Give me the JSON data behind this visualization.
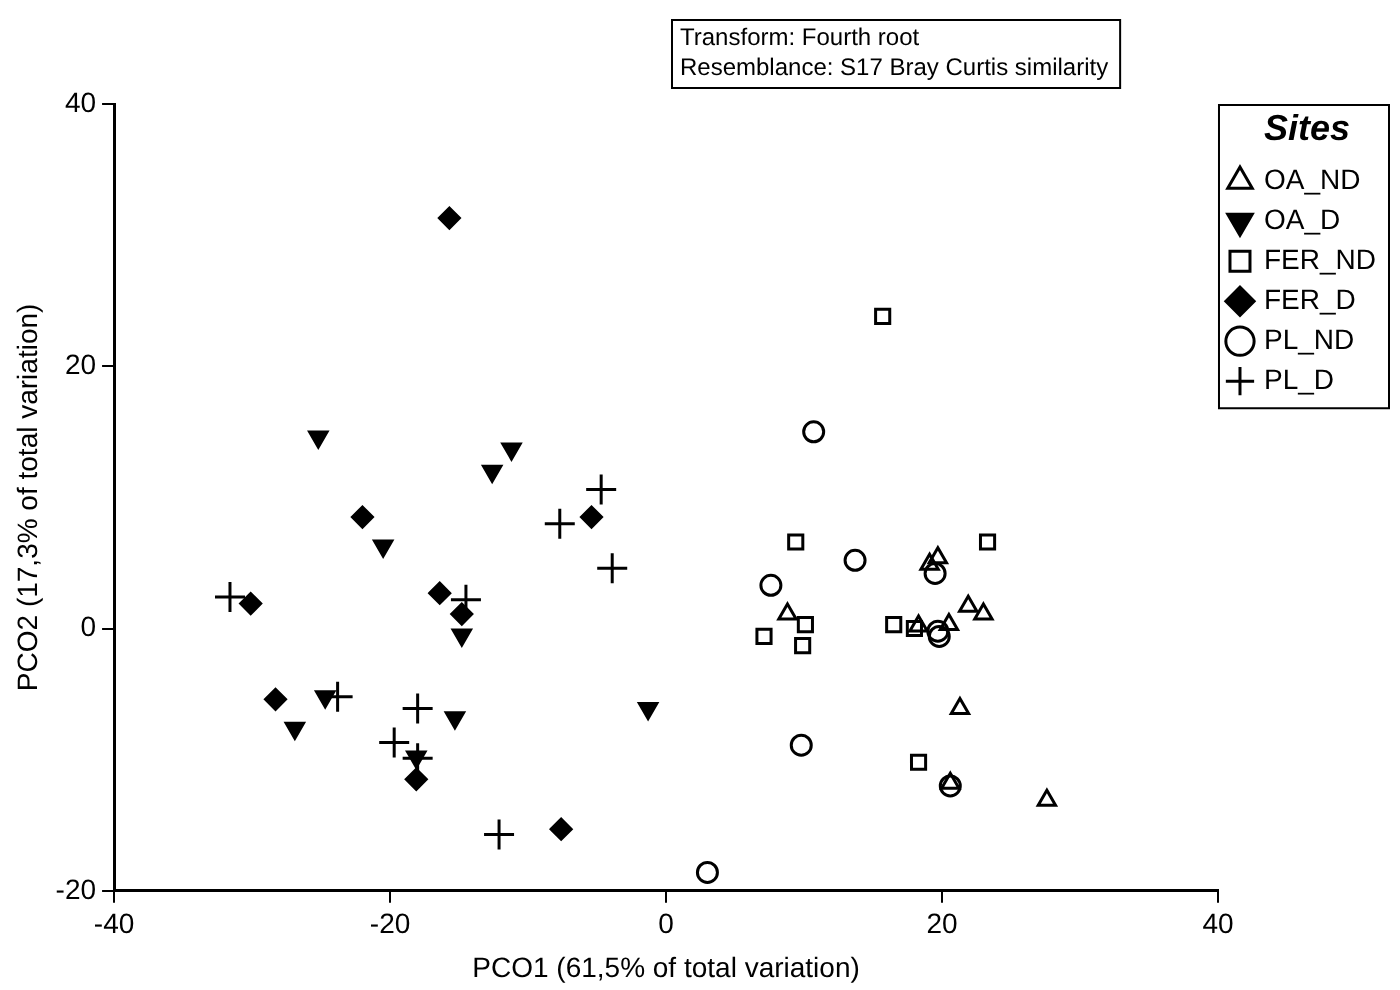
{
  "chart_data": {
    "type": "scatter",
    "xlabel": "PCO1 (61,5% of total variation)",
    "ylabel": "PCO2 (17,3% of total variation)",
    "legend_title": "Sites",
    "legend": "right",
    "grid": false,
    "annotations": [
      "Transform: Fourth root",
      "Resemblance: S17 Bray Curtis similarity"
    ],
    "xlim": [
      -40,
      40
    ],
    "xticks": [
      -40,
      -20,
      0,
      20,
      40
    ],
    "ylim": [
      -20,
      40
    ],
    "yticks": [
      -20,
      0,
      20,
      40
    ],
    "series": [
      {
        "name": "OA_ND",
        "color": "#000000",
        "marker": "triangle",
        "x": [
          8.8,
          19.7,
          19.1,
          21.9,
          23.0,
          18.3,
          20.5,
          21.3,
          20.6,
          27.6
        ],
        "values": [
          1.1,
          5.4,
          4.9,
          1.7,
          1.1,
          0.2,
          0.3,
          -6.1,
          -11.8,
          -13.1
        ]
      },
      {
        "name": "OA_D",
        "color": "#000000",
        "marker": "triangle-down",
        "x": [
          -25.2,
          -11.2,
          -12.6,
          -20.5,
          -14.8,
          -24.7,
          -26.9,
          -15.3,
          -1.3,
          -18.1
        ],
        "values": [
          14.6,
          13.7,
          12.0,
          6.3,
          -0.5,
          -5.2,
          -7.6,
          -6.8,
          -6.1,
          -9.8
        ]
      },
      {
        "name": "FER_ND",
        "color": "#000000",
        "marker": "square",
        "x": [
          15.7,
          9.4,
          23.3,
          10.1,
          7.1,
          9.9,
          16.5,
          18.0,
          18.3
        ],
        "values": [
          23.8,
          6.6,
          6.6,
          0.3,
          -0.6,
          -1.3,
          0.3,
          0.0,
          -10.2
        ]
      },
      {
        "name": "FER_D",
        "color": "#000000",
        "marker": "diamond",
        "x": [
          -15.7,
          -22.0,
          -5.4,
          -30.1,
          -16.4,
          -14.8,
          -28.3,
          -18.1,
          -7.6
        ],
        "values": [
          31.3,
          8.5,
          8.5,
          1.9,
          2.7,
          1.1,
          -5.4,
          -11.5,
          -15.3
        ]
      },
      {
        "name": "PL_ND",
        "color": "#000000",
        "marker": "circle",
        "x": [
          10.7,
          13.7,
          7.6,
          19.5,
          19.8,
          19.7,
          9.8,
          20.6,
          3.0
        ],
        "values": [
          15.0,
          5.2,
          3.3,
          4.2,
          -0.6,
          -0.2,
          -8.9,
          -12.0,
          -18.6
        ]
      },
      {
        "name": "PL_D",
        "color": "#000000",
        "marker": "cross",
        "x": [
          -4.7,
          -7.7,
          -3.9,
          -31.6,
          -14.5,
          -23.8,
          -18.0,
          -19.7,
          -18.0,
          -12.1
        ],
        "values": [
          10.6,
          8.0,
          4.6,
          2.4,
          2.2,
          -5.2,
          -6.1,
          -8.7,
          -9.9,
          -15.7
        ]
      }
    ]
  }
}
